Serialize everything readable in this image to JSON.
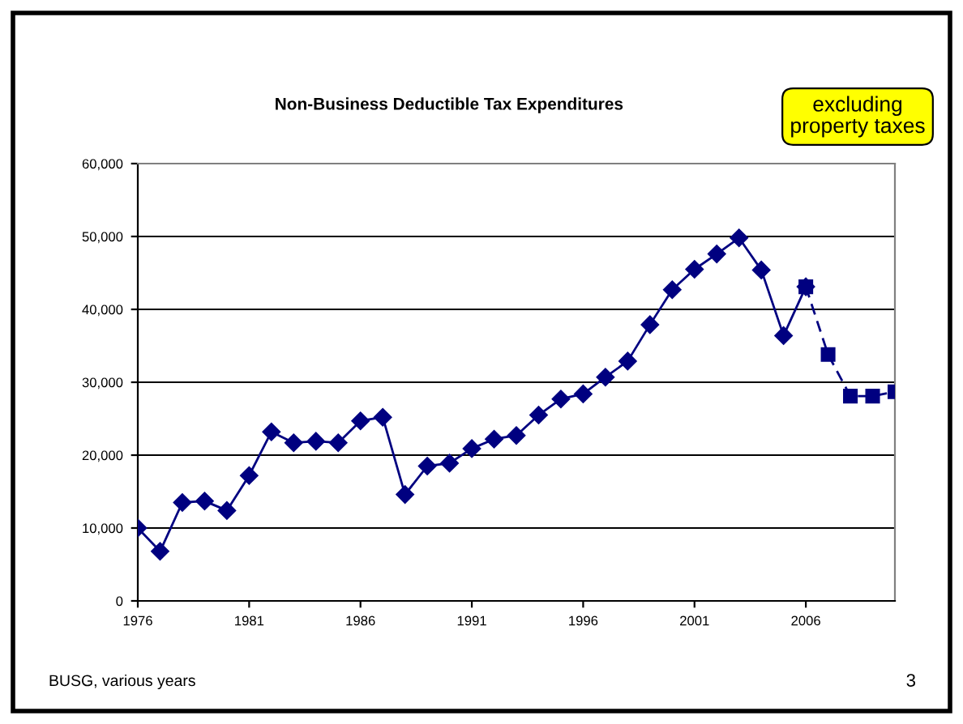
{
  "chart_data": {
    "type": "line",
    "title": "Non-Business Deductible Tax Expenditures",
    "annotations": [
      "excluding\nproperty taxes",
      "BUSG, various years",
      "3"
    ],
    "series": [
      {
        "color": "#000080",
        "marker": "diamond",
        "line_style": "solid",
        "x": [
          1976,
          1977,
          1978,
          1979,
          1980,
          1981,
          1982,
          1983,
          1984,
          1985,
          1986,
          1987,
          1988,
          1989,
          1990,
          1991,
          1992,
          1993,
          1994,
          1995,
          1996,
          1997,
          1998,
          1999,
          2000,
          2001,
          2002,
          2003,
          2004,
          2005,
          2006
        ],
        "values": [
          10000,
          6800,
          13500,
          13700,
          12400,
          17200,
          23200,
          21700,
          21900,
          21700,
          24700,
          25200,
          14600,
          18500,
          18900,
          20900,
          22200,
          22700,
          25500,
          27700,
          28400,
          30700,
          32900,
          37900,
          42700,
          45500,
          47600,
          49800,
          45400,
          36400,
          43100
        ]
      },
      {
        "color": "#000080",
        "marker": "square",
        "line_style": "dashed",
        "x": [
          2006,
          2007,
          2008,
          2009,
          2010
        ],
        "values": [
          43100,
          33800,
          28100,
          28100,
          28700
        ]
      }
    ],
    "xlim": [
      1976,
      2010
    ],
    "xticks": [
      1976,
      1981,
      1986,
      1991,
      1996,
      2001,
      2006
    ],
    "ylim": [
      0,
      60000
    ],
    "yticks": [
      0,
      {
        "value": 10000,
        "label": "10,000"
      },
      {
        "value": 20000,
        "label": "20,000"
      },
      {
        "value": 30000,
        "label": "30,000"
      },
      {
        "value": 40000,
        "label": "40,000"
      },
      {
        "value": 50000,
        "label": "50,000"
      },
      {
        "value": 60000,
        "label": "60,000"
      }
    ],
    "grid": "y",
    "legend": false
  }
}
